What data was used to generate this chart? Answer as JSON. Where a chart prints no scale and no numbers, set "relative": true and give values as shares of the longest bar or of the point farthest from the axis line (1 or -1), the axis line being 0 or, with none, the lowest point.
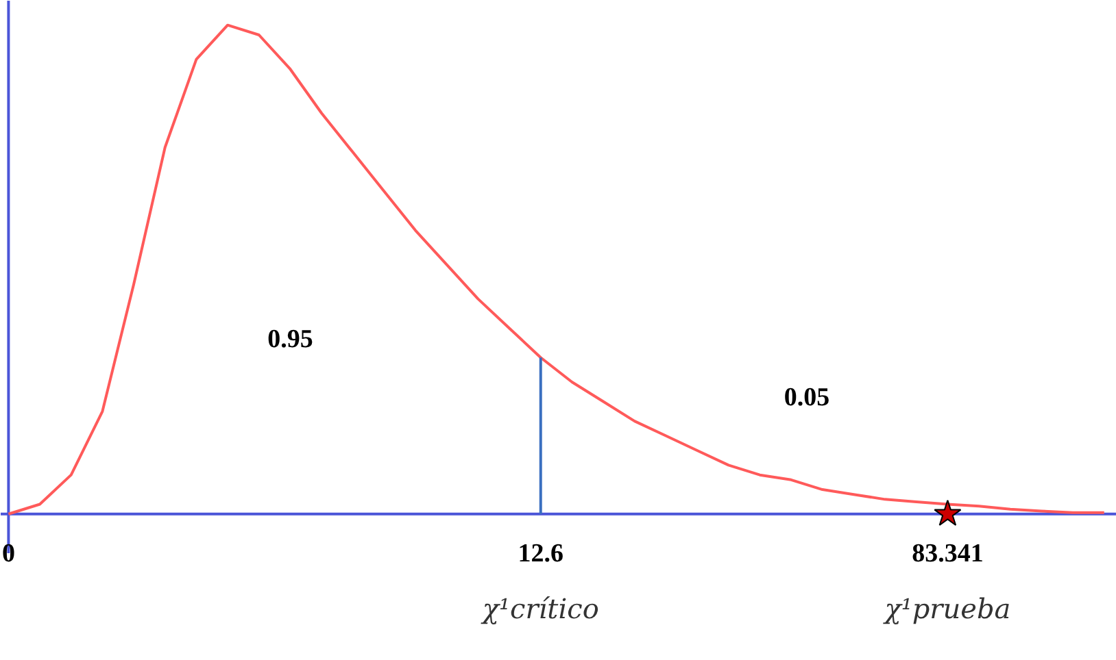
{
  "chart_data": {
    "type": "line",
    "relative": true,
    "tick_labels": "x",
    "grid": false,
    "marker": "none",
    "line_style": "solid",
    "categories": [
      "0",
      null,
      null,
      null,
      null,
      null,
      null,
      null,
      null,
      null,
      null,
      null,
      null,
      null,
      null,
      null,
      null,
      "12.6",
      null,
      null,
      null,
      null,
      null,
      null,
      null,
      null,
      null,
      null,
      null,
      null,
      "83.341",
      null,
      null,
      null,
      null,
      null
    ],
    "series": [
      {
        "color": "#ff5a5a",
        "values": [
          0,
          0.02,
          0.08,
          0.21,
          0.47,
          0.75,
          0.93,
          1.0,
          0.98,
          0.91,
          0.82,
          0.74,
          0.66,
          0.58,
          0.51,
          0.44,
          0.38,
          0.32,
          0.27,
          0.23,
          0.19,
          0.16,
          0.13,
          0.1,
          0.08,
          0.07,
          0.05,
          0.04,
          0.03,
          0.025,
          0.02,
          0.016,
          0.01,
          0.006,
          0.003,
          0.003
        ]
      },
      {
        "type": "line",
        "color": "#3a6fc0",
        "x": [
          "12.6",
          "12.6"
        ],
        "values": [
          0,
          0.32
        ]
      },
      {
        "type": "scatter",
        "marker": "star",
        "color": "#cc0000",
        "x": [
          "83.341"
        ],
        "values": [
          0
        ]
      }
    ],
    "annotations": [
      "0.95",
      "0.05",
      {
        "text": "χ¹crítico",
        "x": "12.6",
        "y": 0
      },
      {
        "text": "χ¹prueba",
        "x": "83.341",
        "y": 0
      }
    ]
  }
}
